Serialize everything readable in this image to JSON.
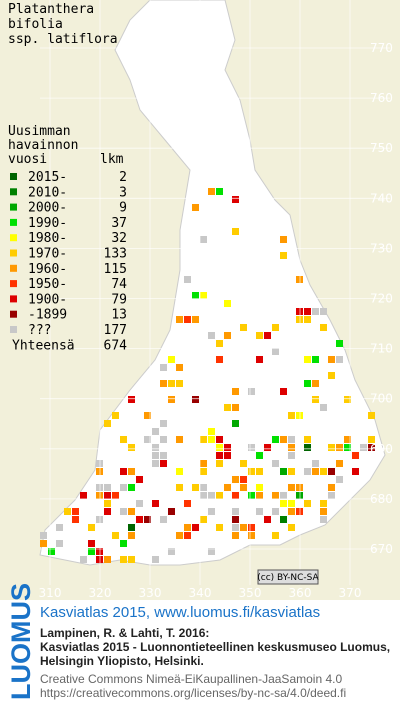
{
  "map": {
    "title_lines": [
      "Platanthera",
      "bifolia",
      "ssp. latiflora"
    ],
    "legend": {
      "title_lines": [
        "Uusimman",
        "havainnon"
      ],
      "header": [
        "vuosi",
        "lkm"
      ],
      "rows": [
        {
          "label": "2015-",
          "count": 2,
          "color": "#006400"
        },
        {
          "label": "2010-",
          "count": 3,
          "color": "#008000"
        },
        {
          "label": "2000-",
          "count": 9,
          "color": "#00a800"
        },
        {
          "label": "1990-",
          "count": 37,
          "color": "#00e000"
        },
        {
          "label": "1980-",
          "count": 32,
          "color": "#ffff00"
        },
        {
          "label": "1970-",
          "count": 133,
          "color": "#ffcc00"
        },
        {
          "label": "1960-",
          "count": 115,
          "color": "#ff9900"
        },
        {
          "label": "1950-",
          "count": 74,
          "color": "#ff3300"
        },
        {
          "label": "1900-",
          "count": 79,
          "color": "#dd0000"
        },
        {
          "label": "-1899",
          "count": 13,
          "color": "#990000"
        },
        {
          "label": "???",
          "count": 177,
          "color": "#c8c8c8"
        }
      ],
      "total_label": "Yhteensä",
      "total": 674
    },
    "yticks": [
      770,
      760,
      750,
      740,
      730,
      720,
      710,
      700,
      690,
      680,
      670
    ],
    "xticks": [
      310,
      320,
      330,
      340,
      350,
      360,
      370
    ],
    "license_badge": "(cc) BY-NC-SA"
  },
  "footer": {
    "logo": "LUOMUS",
    "heading": "Kasviatlas 2015, www.luomus.fi/kasviatlas",
    "citation": [
      "Lampinen, R. & Lahti, T. 2016:",
      "Kasviatlas 2015 - Luonnontieteellinen keskusmuseo Luomus,",
      "Helsingin Yliopisto, Helsinki."
    ],
    "license_lines": [
      "Creative Commons Nimeä-EiKaupallinen-JaaSamoin 4.0",
      "https://creativecommons.org/licenses/by-nc-sa/4.0/deed.fi"
    ]
  }
}
